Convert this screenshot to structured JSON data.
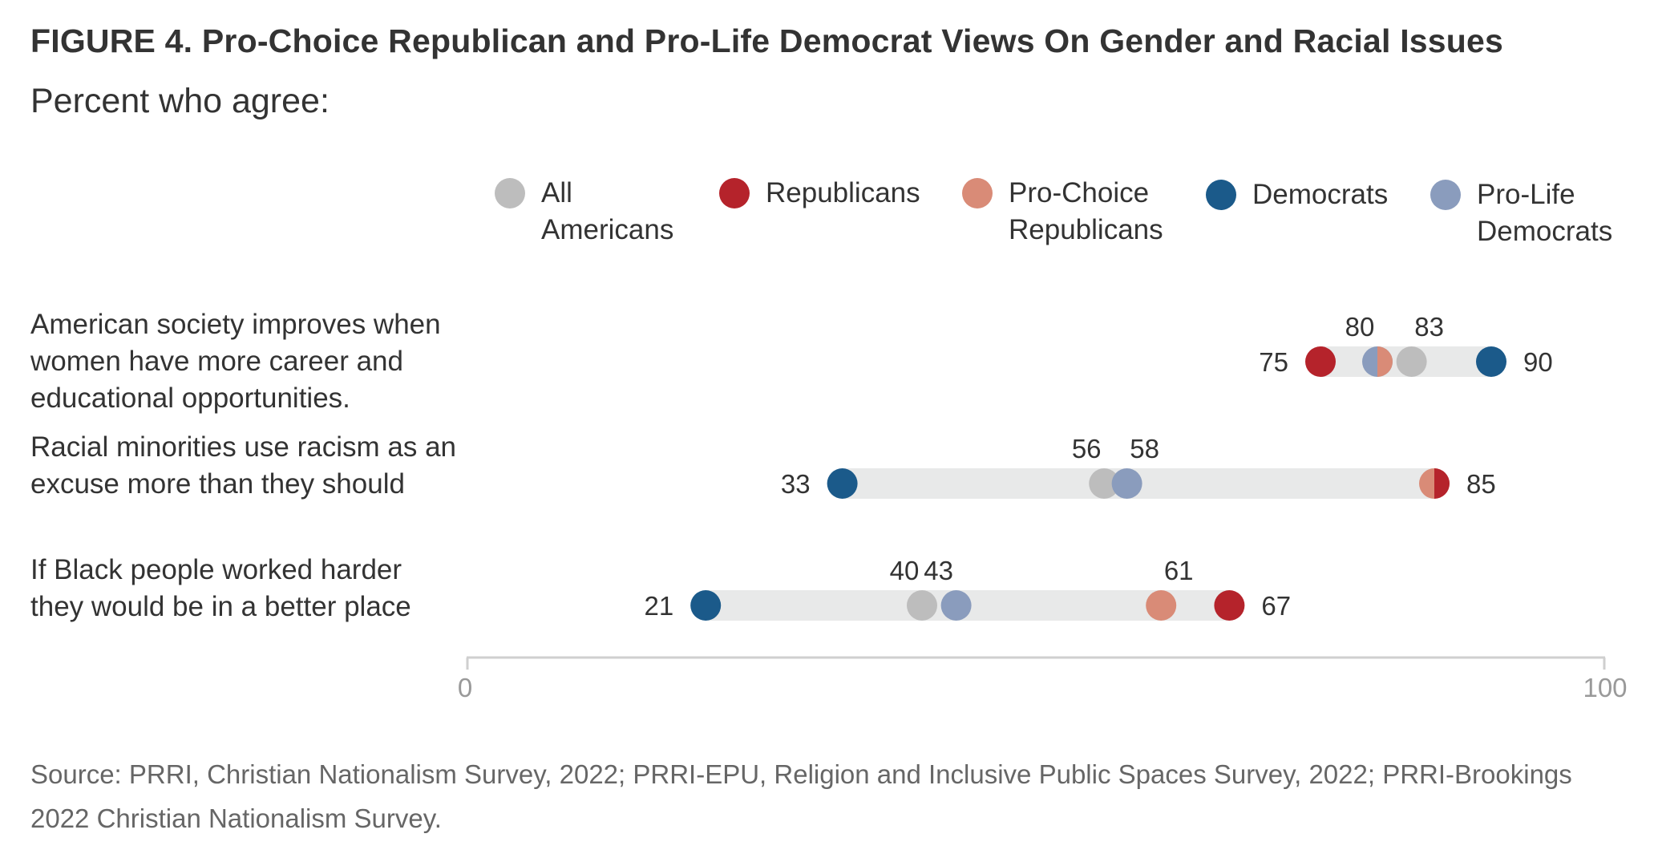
{
  "title": "FIGURE 4.  Pro-Choice Republican and Pro-Life Democrat Views On Gender and Racial Issues",
  "subtitle": "Percent who agree:",
  "legend": [
    {
      "key": "all",
      "label": "All\nAmericans",
      "color": "#BDBDBD"
    },
    {
      "key": "rep",
      "label": "Republicans",
      "color": "#B5232B"
    },
    {
      "key": "pcr",
      "label": "Pro-Choice\nRepublicans",
      "color": "#D98B77"
    },
    {
      "key": "dem",
      "label": "Democrats",
      "color": "#1B5A8A"
    },
    {
      "key": "pld",
      "label": "Pro-Life\nDemocrats",
      "color": "#8A9CBD"
    }
  ],
  "source": "Source: PRRI, Christian Nationalism Survey, 2022; PRRI-EPU, Religion and Inclusive Public Spaces Survey, 2022; PRRI-Brookings 2022 Christian Nationalism Survey.",
  "chart_data": {
    "type": "dot",
    "xlim": [
      0,
      100
    ],
    "x_ticks": [
      "0",
      "100"
    ],
    "grid": false,
    "legend_position": "top",
    "categories": [
      "American society improves when\nwomen have more career and\neducational opportunities.",
      "Racial minorities use racism as an\nexcuse more than they should",
      "If Black people worked harder\nthey would be in a better place"
    ],
    "series": [
      {
        "key": "all",
        "name": "All Americans",
        "values": [
          83,
          56,
          40
        ]
      },
      {
        "key": "rep",
        "name": "Republicans",
        "values": [
          75,
          85,
          67
        ]
      },
      {
        "key": "pcr",
        "name": "Pro-Choice Republicans",
        "values": [
          80,
          85,
          61
        ]
      },
      {
        "key": "dem",
        "name": "Democrats",
        "values": [
          90,
          33,
          21
        ]
      },
      {
        "key": "pld",
        "name": "Pro-Life Democrats",
        "values": [
          80,
          58,
          43
        ]
      }
    ]
  }
}
